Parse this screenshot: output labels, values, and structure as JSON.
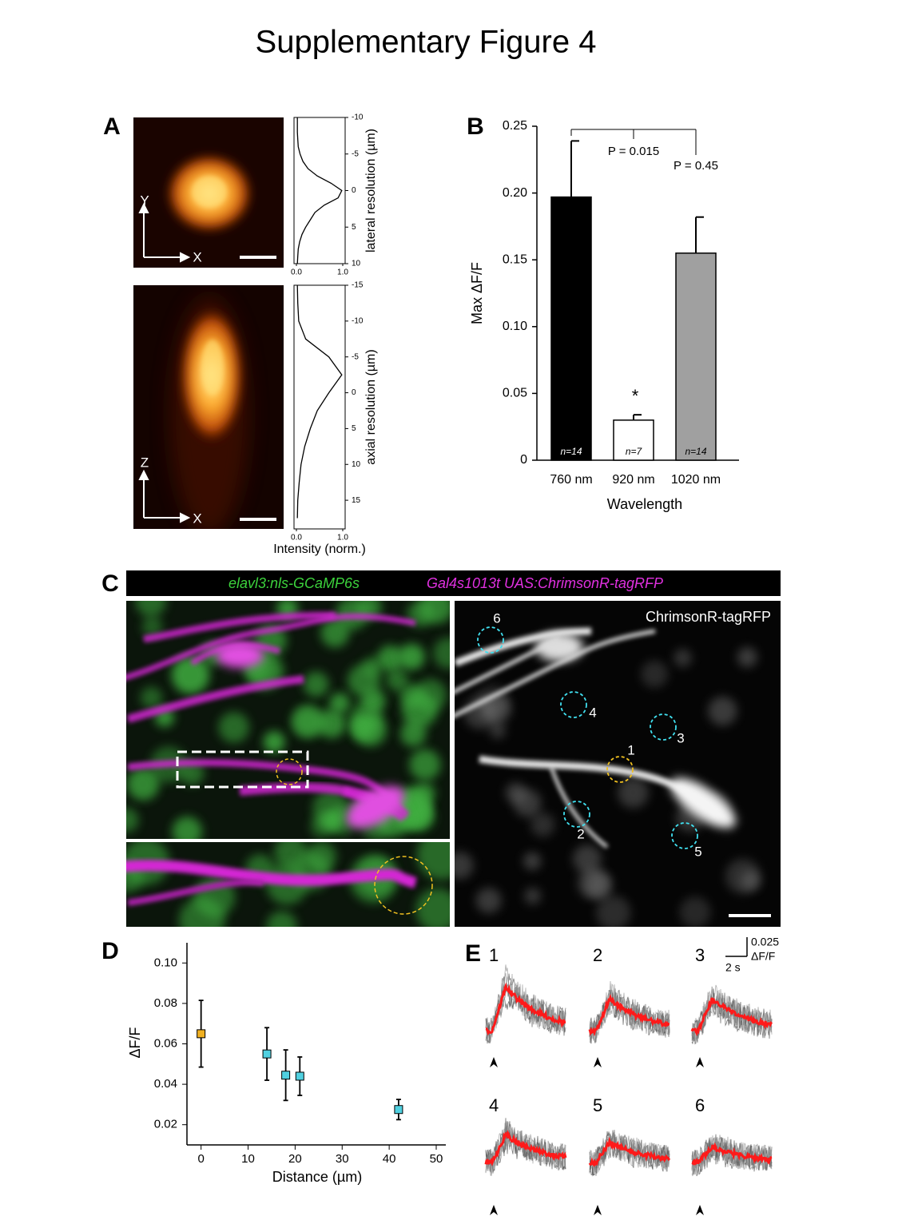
{
  "title": "Supplementary Figure 4",
  "panel_labels": [
    "A",
    "B",
    "C",
    "D",
    "E"
  ],
  "panel_a": {
    "image_axes": [
      [
        "Y",
        "X"
      ],
      [
        "Z",
        "X"
      ]
    ]
  },
  "chart_data": [
    {
      "type": "line",
      "orientation": "vertical",
      "color": "#000000",
      "x": [
        -10,
        -9,
        -8,
        -7,
        -6,
        -5,
        -4,
        -3,
        -2,
        -1,
        0,
        1,
        2,
        3,
        4,
        5,
        6,
        7,
        8,
        9,
        10
      ],
      "values": [
        0.02,
        0.02,
        0.02,
        0.03,
        0.04,
        0.08,
        0.14,
        0.25,
        0.45,
        0.75,
        0.98,
        0.9,
        0.6,
        0.4,
        0.3,
        0.2,
        0.12,
        0.07,
        0.04,
        0.03,
        0.02
      ],
      "xlim": [
        -10,
        10
      ],
      "xticks": [
        -10,
        -5,
        0,
        5,
        10
      ],
      "ylim": [
        0,
        1
      ],
      "yticks": [
        {
          "value": 0,
          "label": "0.0"
        },
        {
          "value": 1,
          "label": "1.0"
        }
      ],
      "xlabel": "lateral resolution (µm)"
    },
    {
      "type": "line",
      "orientation": "vertical",
      "color": "#000000",
      "x": [
        -15,
        -12.5,
        -10,
        -7.5,
        -5,
        -2.5,
        0,
        2.5,
        5,
        7.5,
        10,
        12.5,
        15,
        17.5
      ],
      "values": [
        0.02,
        0.03,
        0.05,
        0.2,
        0.7,
        0.98,
        0.7,
        0.45,
        0.3,
        0.18,
        0.1,
        0.06,
        0.03,
        0.02
      ],
      "xlim": [
        -15,
        19
      ],
      "xticks": [
        -15,
        -10,
        -5,
        0,
        5,
        10,
        15
      ],
      "ylim": [
        0,
        1
      ],
      "yticks": [
        {
          "value": 0,
          "label": "0.0"
        },
        {
          "value": 1,
          "label": "1.0"
        }
      ],
      "xlabel": "axial resolution (µm)",
      "ylabel": "Intensity (norm.)"
    },
    {
      "type": "bar",
      "categories": [
        "760 nm",
        "920 nm",
        "1020 nm"
      ],
      "values": [
        0.197,
        0.03,
        0.155
      ],
      "errors": [
        0.042,
        0.004,
        0.027
      ],
      "colors": [
        "#000000",
        "#ffffff",
        "#a0a0a0"
      ],
      "sample_sizes": [
        "n=14",
        "n=7",
        "n=14"
      ],
      "ylim": [
        0,
        0.25
      ],
      "yticks": [
        0,
        0.05,
        {
          "value": 0.1,
          "label": "0.10"
        },
        0.15,
        {
          "value": 0.2,
          "label": "0.20"
        },
        0.25
      ],
      "ylabel": "Max ΔF/F",
      "xlabel": "Wavelength",
      "annotations": [
        "P = 0.015",
        "P = 0.45",
        "*"
      ]
    },
    {
      "type": "scatter",
      "x": [
        0,
        14,
        18,
        21,
        42
      ],
      "values": [
        0.065,
        0.055,
        0.0445,
        0.044,
        0.0275
      ],
      "errors": [
        0.0165,
        0.013,
        0.0125,
        0.0095,
        0.005
      ],
      "colors": [
        "#f0b020",
        "#50d0e0",
        "#50d0e0",
        "#50d0e0",
        "#50d0e0"
      ],
      "xlim": [
        -3,
        50
      ],
      "xticks": [
        0,
        10,
        20,
        30,
        40,
        50
      ],
      "ylim": [
        0.01,
        0.11
      ],
      "yticks": [
        0.02,
        0.04,
        0.06,
        0.08,
        {
          "value": 0.1,
          "label": "0.10"
        }
      ],
      "xlabel": "Distance (µm)",
      "ylabel": "ΔF/F"
    }
  ],
  "panel_c": {
    "header": [
      "elavl3:nls-GCaMP6s",
      "Gal4s1013t UAS:ChrimsonR-tagRFP"
    ],
    "image_label": "ChrimsonR-tagRFP",
    "roi_labels": [
      "1",
      "2",
      "3",
      "4",
      "5",
      "6"
    ]
  },
  "panel_e": {
    "trace_labels": [
      "1",
      "2",
      "3",
      "4",
      "5",
      "6"
    ],
    "scale_labels": [
      "0.025",
      "ΔF/F",
      "2 s"
    ]
  }
}
